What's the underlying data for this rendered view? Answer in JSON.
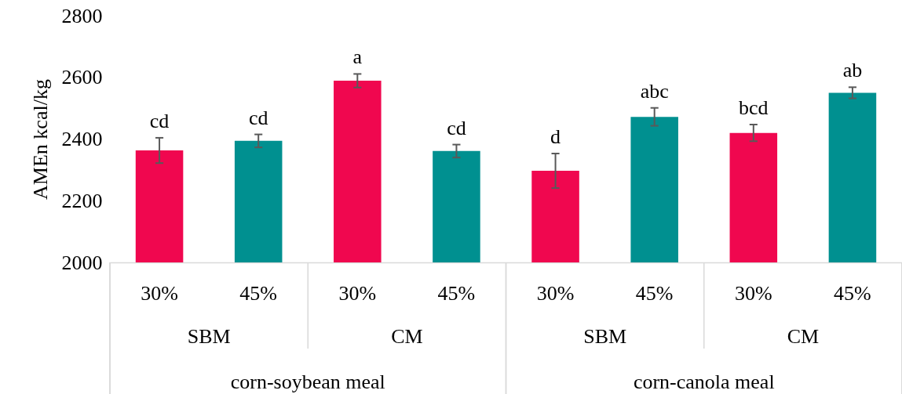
{
  "chart_data": {
    "type": "bar",
    "ylabel": "AMEn kcal/kg",
    "categories": [
      "30%",
      "45%",
      "30%",
      "45%",
      "30%",
      "45%",
      "30%",
      "45%"
    ],
    "values": [
      2363,
      2394,
      2589,
      2361,
      2297,
      2472,
      2420,
      2550
    ],
    "errors": [
      41,
      21,
      22,
      21,
      56,
      29,
      27,
      18
    ],
    "colors": [
      "#f0074f",
      "#009090",
      "#f0074f",
      "#009090",
      "#f0074f",
      "#009090",
      "#f0074f",
      "#009090"
    ],
    "value_labels": [
      "cd",
      "cd",
      "a",
      "cd",
      "d",
      "abc",
      "bcd",
      "ab"
    ],
    "annotations": [
      "SBM",
      "CM",
      "SBM",
      "CM",
      "corn-soybean meal",
      "corn-canola meal"
    ],
    "ylim": [
      2000,
      2800
    ],
    "yticks": [
      2000,
      2200,
      2400,
      2600,
      2800
    ],
    "grid": false
  }
}
